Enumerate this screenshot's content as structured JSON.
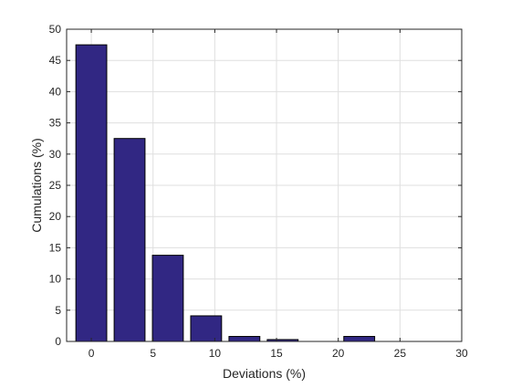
{
  "chart_data": {
    "type": "bar",
    "xlabel": "Deviations (%)",
    "ylabel": "Cumulations (%)",
    "xlim": [
      -2,
      30
    ],
    "ylim": [
      0,
      50
    ],
    "x_ticks": [
      0,
      5,
      10,
      15,
      20,
      25,
      30
    ],
    "y_ticks": [
      0,
      5,
      10,
      15,
      20,
      25,
      30,
      35,
      40,
      45,
      50
    ],
    "bar_width": 2.5,
    "grid": true,
    "bar_color": "#312783",
    "x": [
      0,
      3.1,
      6.2,
      9.3,
      12.4,
      15.5,
      18.6,
      21.7
    ],
    "values": [
      47.5,
      32.5,
      13.8,
      4.1,
      0.8,
      0.3,
      0.0,
      0.8
    ]
  }
}
